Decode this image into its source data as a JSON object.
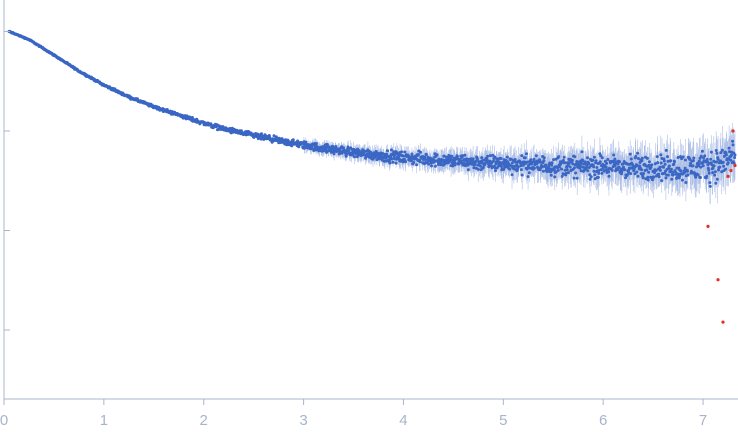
{
  "colors": {
    "axis": "#a8b4cc",
    "points": "#3a66c4",
    "error_bars": "#aebfe6",
    "excluded_points": "#e0302a"
  },
  "chart_data": {
    "type": "scatter",
    "title": "",
    "xlabel": "",
    "ylabel": "",
    "xlim": [
      0,
      7.35
    ],
    "ylim": [
      0,
      1
    ],
    "yscale": "log",
    "x_ticks": [
      "0",
      "1",
      "2",
      "3",
      "4",
      "5",
      "6",
      "7"
    ],
    "y_ticks_labeled": false,
    "grid": false,
    "legend": "none",
    "series": [
      {
        "x": [
          0.05,
          0.25,
          0.5,
          0.75,
          1.0,
          1.25,
          1.5,
          1.75,
          2.0,
          2.25,
          2.5,
          2.75,
          3.0,
          3.25,
          3.5,
          3.75,
          4.0,
          4.25,
          4.5,
          4.75,
          5.0,
          5.25,
          5.5,
          5.75,
          6.0,
          6.25,
          6.5,
          6.75,
          7.0,
          7.2,
          7.3
        ],
        "y": [
          1.0,
          0.83,
          0.58,
          0.4,
          0.29,
          0.22,
          0.175,
          0.145,
          0.12,
          0.102,
          0.09,
          0.08,
          0.072,
          0.066,
          0.061,
          0.057,
          0.054,
          0.052,
          0.05,
          0.048,
          0.047,
          0.046,
          0.045,
          0.044,
          0.044,
          0.043,
          0.043,
          0.043,
          0.043,
          0.048,
          0.06
        ]
      },
      {
        "x": [
          7.05,
          7.15,
          7.2,
          7.25,
          7.28,
          7.3,
          7.32
        ],
        "y": [
          0.011,
          0.0032,
          0.0012,
          0.035,
          0.04,
          0.1,
          0.045
        ]
      }
    ]
  }
}
